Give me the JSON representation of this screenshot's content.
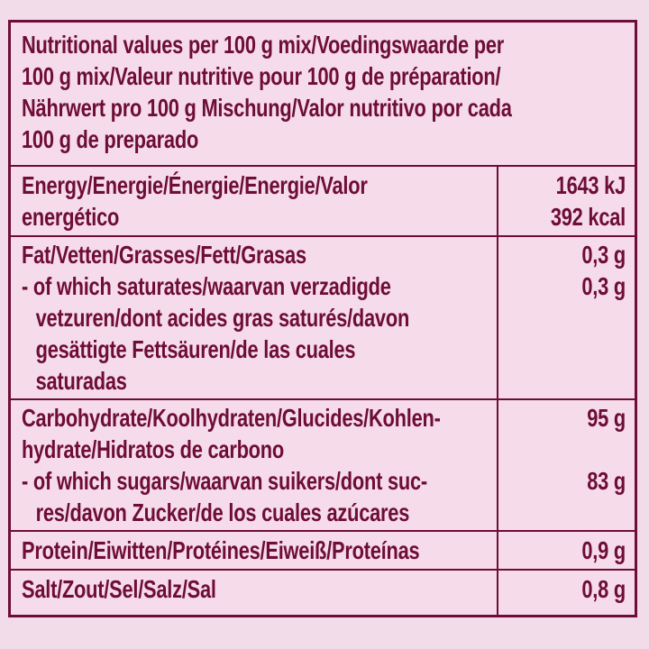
{
  "colors": {
    "text": "#6e0d36",
    "border": "#6e0d36",
    "table_background": "#f6dcea",
    "page_background": "#f2dcea"
  },
  "table": {
    "header": {
      "lines": [
        "Nutritional values per 100 g mix/Voedingswaarde per",
        "100 g mix/Valeur nutritive pour 100 g de préparation/",
        "Nährwert pro 100 g Mischung/Valor nutritivo por cada",
        "100 g de preparado"
      ]
    },
    "rows": [
      {
        "name": "energy",
        "label_lines": [
          "Energy/Energie/Énergie/Energie/Valor",
          "energético"
        ],
        "values": [
          "1643 kJ",
          "392 kcal"
        ]
      },
      {
        "name": "fat",
        "label_lines": [
          "Fat/Vetten/Grasses/Fett/Grasas",
          "- of which saturates/waarvan verzadigde",
          "vetzuren/dont acides gras saturés/davon",
          "gesättigte Fettsäuren/de las cuales",
          "saturadas"
        ],
        "values": [
          "0,3 g",
          "0,3 g"
        ]
      },
      {
        "name": "carbohydrate",
        "label_lines": [
          "Carbohydrate/Koolhydraten/Glucides/Kohlen-",
          "hydrate/Hidratos de carbono",
          "- of which sugars/waarvan suikers/dont suc-",
          "res/davon Zucker/de los cuales azúcares"
        ],
        "values": [
          "95 g",
          "83 g"
        ]
      },
      {
        "name": "protein",
        "label_lines": [
          "Protein/Eiwitten/Protéines/Eiweiß/Proteínas"
        ],
        "values": [
          "0,9 g"
        ]
      },
      {
        "name": "salt",
        "label_lines": [
          "Salt/Zout/Sel/Salz/Sal"
        ],
        "values": [
          "0,8 g"
        ]
      }
    ]
  }
}
